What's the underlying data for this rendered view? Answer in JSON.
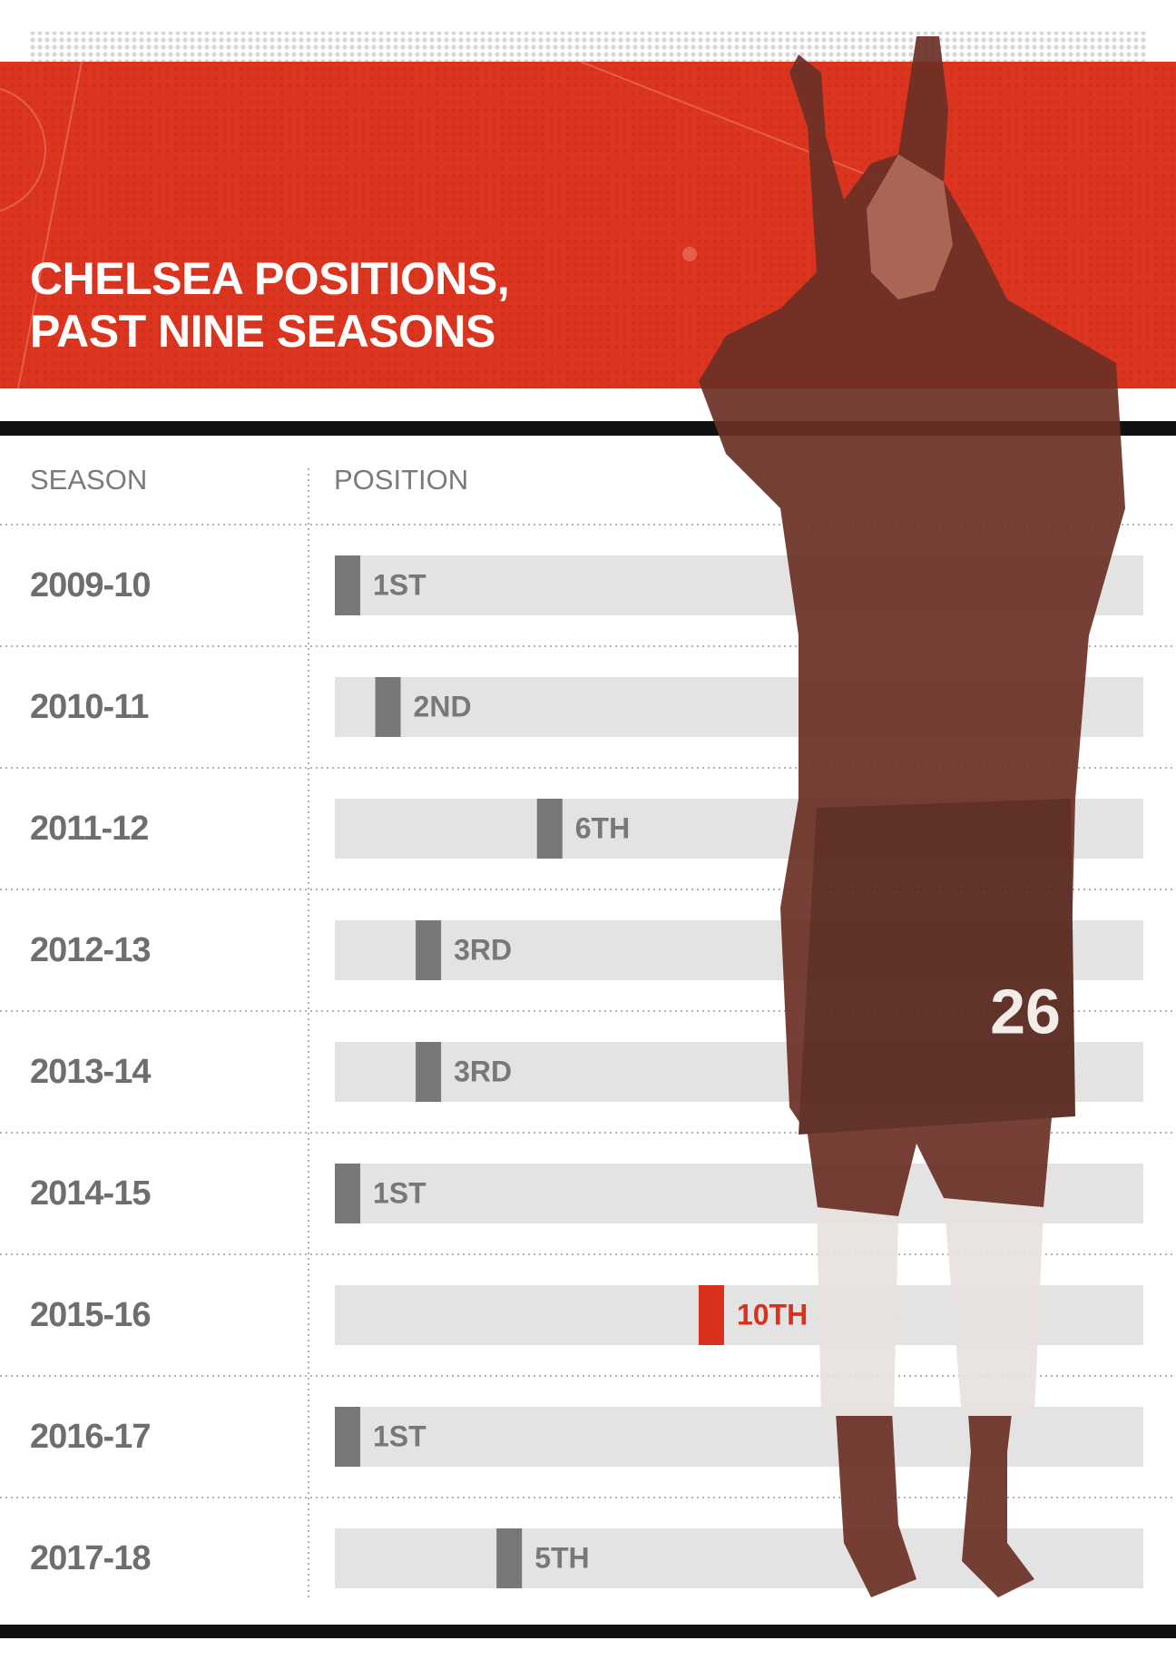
{
  "chart_data": {
    "type": "position-track",
    "title": "CHELSEA POSITIONS, PAST NINE SEASONS",
    "columns": [
      "SEASON",
      "POSITION"
    ],
    "categories": [
      "2009-10",
      "2010-11",
      "2011-12",
      "2012-13",
      "2013-14",
      "2014-15",
      "2015-16",
      "2016-17",
      "2017-18"
    ],
    "values": [
      1,
      2,
      6,
      3,
      3,
      1,
      10,
      1,
      5
    ],
    "value_labels": [
      "1ST",
      "2ND",
      "6TH",
      "3RD",
      "3RD",
      "1ST",
      "10TH",
      "1ST",
      "5TH"
    ],
    "colors": [
      "#77787a",
      "#77787a",
      "#77787a",
      "#77787a",
      "#77787a",
      "#77787a",
      "#d8311e",
      "#77787a",
      "#77787a"
    ],
    "xlim": [
      1,
      21
    ]
  }
}
